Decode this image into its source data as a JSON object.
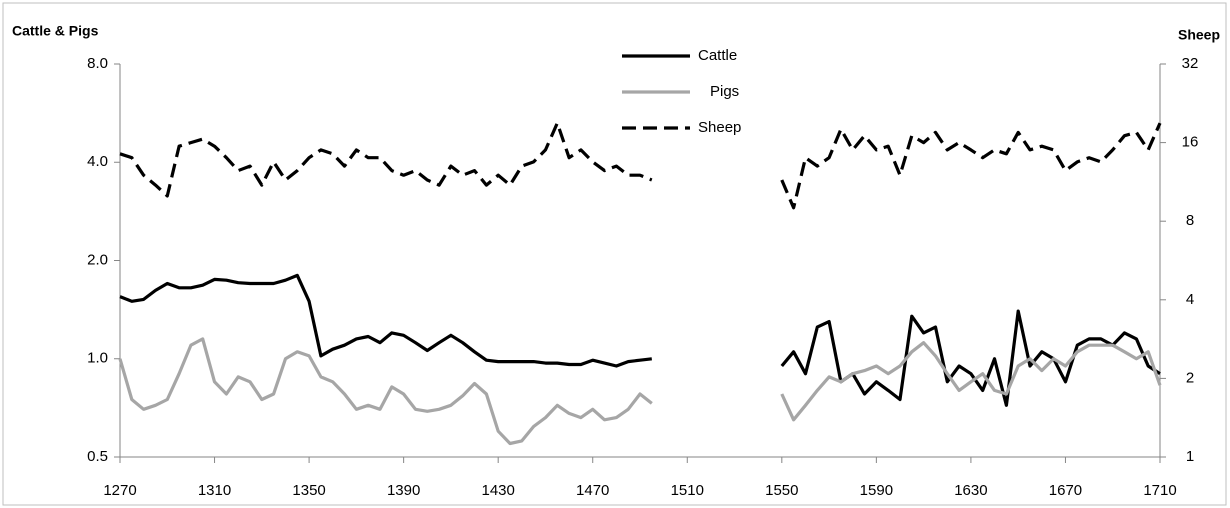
{
  "chart_data": {
    "type": "line",
    "y_label": "Cattle & Pigs",
    "y2_label": "Sheep",
    "x": [
      1270,
      1275,
      1280,
      1285,
      1290,
      1295,
      1300,
      1305,
      1310,
      1315,
      1320,
      1325,
      1330,
      1335,
      1340,
      1345,
      1350,
      1355,
      1360,
      1365,
      1370,
      1375,
      1380,
      1385,
      1390,
      1395,
      1400,
      1405,
      1410,
      1415,
      1420,
      1425,
      1430,
      1435,
      1440,
      1445,
      1450,
      1455,
      1460,
      1465,
      1470,
      1475,
      1480,
      1485,
      1490,
      1495,
      1500,
      1505,
      1510,
      1515,
      1520,
      1525,
      1530,
      1535,
      1540,
      1545,
      1550,
      1555,
      1560,
      1565,
      1570,
      1575,
      1580,
      1585,
      1590,
      1595,
      1600,
      1605,
      1610,
      1615,
      1620,
      1625,
      1630,
      1635,
      1640,
      1645,
      1650,
      1655,
      1660,
      1665,
      1670,
      1675,
      1680,
      1685,
      1690,
      1695,
      1700,
      1705,
      1710
    ],
    "series": [
      {
        "name": "Cattle",
        "color": "#000000",
        "style": "solid",
        "axis": "y",
        "values": [
          1.55,
          1.5,
          1.52,
          1.62,
          1.7,
          1.65,
          1.65,
          1.68,
          1.75,
          1.74,
          1.71,
          1.7,
          1.7,
          1.7,
          1.74,
          1.8,
          1.5,
          1.02,
          1.07,
          1.1,
          1.15,
          1.17,
          1.12,
          1.2,
          1.18,
          1.12,
          1.06,
          1.12,
          1.18,
          1.12,
          1.05,
          0.99,
          0.98,
          0.98,
          0.98,
          0.98,
          0.97,
          0.97,
          0.96,
          0.96,
          0.99,
          0.97,
          0.95,
          0.98,
          0.99,
          1.0,
          null,
          null,
          null,
          null,
          null,
          null,
          null,
          null,
          null,
          null,
          0.95,
          1.05,
          0.9,
          1.25,
          1.3,
          0.85,
          0.9,
          0.78,
          0.85,
          0.8,
          0.75,
          1.35,
          1.2,
          1.25,
          0.85,
          0.95,
          0.9,
          0.8,
          1.0,
          0.72,
          1.4,
          0.95,
          1.05,
          1.0,
          0.85,
          1.1,
          1.15,
          1.15,
          1.1,
          1.2,
          1.15,
          0.95,
          0.9
        ]
      },
      {
        "name": "Pigs",
        "color": "#a6a6a6",
        "style": "solid",
        "axis": "y",
        "values": [
          1.0,
          0.75,
          0.7,
          0.72,
          0.75,
          0.9,
          1.1,
          1.15,
          0.85,
          0.78,
          0.88,
          0.85,
          0.75,
          0.78,
          1.0,
          1.05,
          1.02,
          0.88,
          0.85,
          0.78,
          0.7,
          0.72,
          0.7,
          0.82,
          0.78,
          0.7,
          0.69,
          0.7,
          0.72,
          0.77,
          0.84,
          0.78,
          0.6,
          0.55,
          0.56,
          0.62,
          0.66,
          0.72,
          0.68,
          0.66,
          0.7,
          0.65,
          0.66,
          0.7,
          0.78,
          0.73,
          null,
          null,
          null,
          null,
          null,
          null,
          null,
          null,
          null,
          null,
          0.78,
          0.65,
          0.72,
          0.8,
          0.88,
          0.85,
          0.9,
          0.92,
          0.95,
          0.9,
          0.95,
          1.05,
          1.12,
          1.02,
          0.9,
          0.8,
          0.85,
          0.9,
          0.8,
          0.78,
          0.95,
          1.0,
          0.92,
          1.0,
          0.95,
          1.05,
          1.1,
          1.1,
          1.1,
          1.05,
          1.0,
          1.05,
          0.83
        ]
      },
      {
        "name": "Sheep",
        "color": "#000000",
        "style": "dashed",
        "axis": "y2",
        "values": [
          14.5,
          14,
          12,
          11,
          10,
          15.5,
          16,
          16.5,
          15.5,
          14,
          12.5,
          13,
          11,
          13.5,
          11.5,
          12.5,
          14,
          15,
          14.5,
          13,
          15,
          14,
          14,
          12.5,
          12,
          12.5,
          11.5,
          11,
          13,
          12,
          12.5,
          11,
          12,
          11,
          13,
          13.5,
          15,
          19,
          14,
          15,
          13.5,
          12.5,
          13,
          12,
          12,
          11.5,
          null,
          null,
          null,
          null,
          null,
          null,
          null,
          null,
          null,
          null,
          11.5,
          9,
          14,
          13,
          14,
          18,
          15,
          17,
          15,
          15.5,
          12,
          17,
          16,
          17.5,
          15,
          16,
          15,
          14,
          15,
          14.5,
          17.5,
          15,
          15.5,
          15,
          12.5,
          13.5,
          14,
          13.5,
          15,
          17,
          17.5,
          15,
          19
        ]
      }
    ],
    "xlim": [
      1270,
      1710
    ],
    "xticks": [
      1270,
      1310,
      1350,
      1390,
      1430,
      1470,
      1510,
      1550,
      1590,
      1630,
      1670,
      1710
    ],
    "ylim": [
      0.5,
      8
    ],
    "ylog": true,
    "yticks": [
      0.5,
      {
        "value": 1,
        "label": "1.0"
      },
      {
        "value": 2,
        "label": "2.0"
      },
      {
        "value": 4,
        "label": "4.0"
      },
      {
        "value": 8,
        "label": "8.0"
      }
    ],
    "y2lim": [
      1,
      32
    ],
    "y2log": true,
    "y2ticks": [
      1,
      2,
      4,
      8,
      16,
      32
    ],
    "legend": "top"
  }
}
